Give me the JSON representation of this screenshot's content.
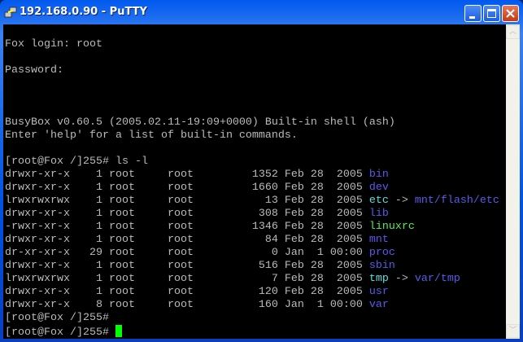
{
  "window": {
    "title": "192.168.0.90 - PuTTY",
    "icon": "putty-icon",
    "controls": [
      "minimize",
      "maximize",
      "close"
    ]
  },
  "terminal": {
    "pre_lines": [
      "",
      "Fox login: root",
      "",
      "Password:",
      "",
      "",
      "",
      "BusyBox v0.60.5 (2005.02.11-19:09+0000) Built-in shell (ash)",
      "Enter 'help' for a list of built-in commands.",
      "",
      "[root@Fox /]255# ls -l"
    ],
    "listing": [
      {
        "prefix": "drwxr-xr-x    1 root     root         1352 Feb 28  2005 ",
        "name": "bin",
        "type": "dir",
        "target": ""
      },
      {
        "prefix": "drwxr-xr-x    1 root     root         1660 Feb 28  2005 ",
        "name": "dev",
        "type": "dir",
        "target": ""
      },
      {
        "prefix": "lrwxrwxrwx    1 root     root           13 Feb 28  2005 ",
        "name": "etc",
        "type": "lnk",
        "target": "mnt/flash/etc"
      },
      {
        "prefix": "drwxr-xr-x    1 root     root          308 Feb 28  2005 ",
        "name": "lib",
        "type": "dir",
        "target": ""
      },
      {
        "prefix": "-rwxr-xr-x    1 root     root         1346 Feb 28  2005 ",
        "name": "linuxrc",
        "type": "exe",
        "target": ""
      },
      {
        "prefix": "drwxr-xr-x    1 root     root           84 Feb 28  2005 ",
        "name": "mnt",
        "type": "dir",
        "target": ""
      },
      {
        "prefix": "dr-xr-xr-x   29 root     root            0 Jan  1 00:00 ",
        "name": "proc",
        "type": "dir",
        "target": ""
      },
      {
        "prefix": "drwxr-xr-x    1 root     root          516 Feb 28  2005 ",
        "name": "sbin",
        "type": "dir",
        "target": ""
      },
      {
        "prefix": "lrwxrwxrwx    1 root     root            7 Feb 28  2005 ",
        "name": "tmp",
        "type": "lnk",
        "target": "var/tmp"
      },
      {
        "prefix": "drwxr-xr-x    1 root     root          120 Feb 28  2005 ",
        "name": "usr",
        "type": "dir",
        "target": ""
      },
      {
        "prefix": "drwxr-xr-x    8 root     root          160 Jan  1 00:00 ",
        "name": "var",
        "type": "dir",
        "target": ""
      }
    ],
    "link_arrow": " -> ",
    "post_lines": [
      "[root@Fox /]255# "
    ],
    "prompt": "[root@Fox /]255# ",
    "colors": {
      "text": "#bbbbbb",
      "dir": "#5a5aee",
      "link": "#55e0e0",
      "exe": "#55ee55",
      "cursor": "#00ff00"
    }
  }
}
